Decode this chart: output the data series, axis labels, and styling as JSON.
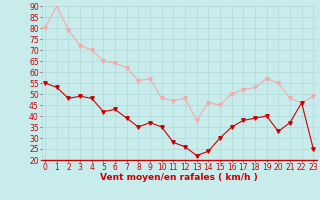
{
  "hours": [
    0,
    1,
    2,
    3,
    4,
    5,
    6,
    7,
    8,
    9,
    10,
    11,
    12,
    13,
    14,
    15,
    16,
    17,
    18,
    19,
    20,
    21,
    22,
    23
  ],
  "wind_avg": [
    55,
    53,
    48,
    49,
    48,
    42,
    43,
    39,
    35,
    37,
    35,
    28,
    26,
    22,
    24,
    30,
    35,
    38,
    39,
    40,
    33,
    37,
    46,
    25
  ],
  "wind_gust": [
    80,
    90,
    79,
    72,
    70,
    65,
    64,
    62,
    56,
    57,
    48,
    47,
    48,
    38,
    46,
    45,
    50,
    52,
    53,
    57,
    55,
    48,
    46,
    49
  ],
  "avg_color": "#cc0000",
  "gust_color": "#f4aaaa",
  "bg_color": "#c8ecec",
  "grid_color": "#aad4d4",
  "axis_color": "#cc0000",
  "xlabel": "Vent moyen/en rafales ( km/h )",
  "ylim": [
    20,
    90
  ],
  "yticks": [
    20,
    25,
    30,
    35,
    40,
    45,
    50,
    55,
    60,
    65,
    70,
    75,
    80,
    85,
    90
  ],
  "xlim": [
    -0.3,
    23.3
  ],
  "label_fontsize": 6.5,
  "tick_fontsize": 5.5
}
